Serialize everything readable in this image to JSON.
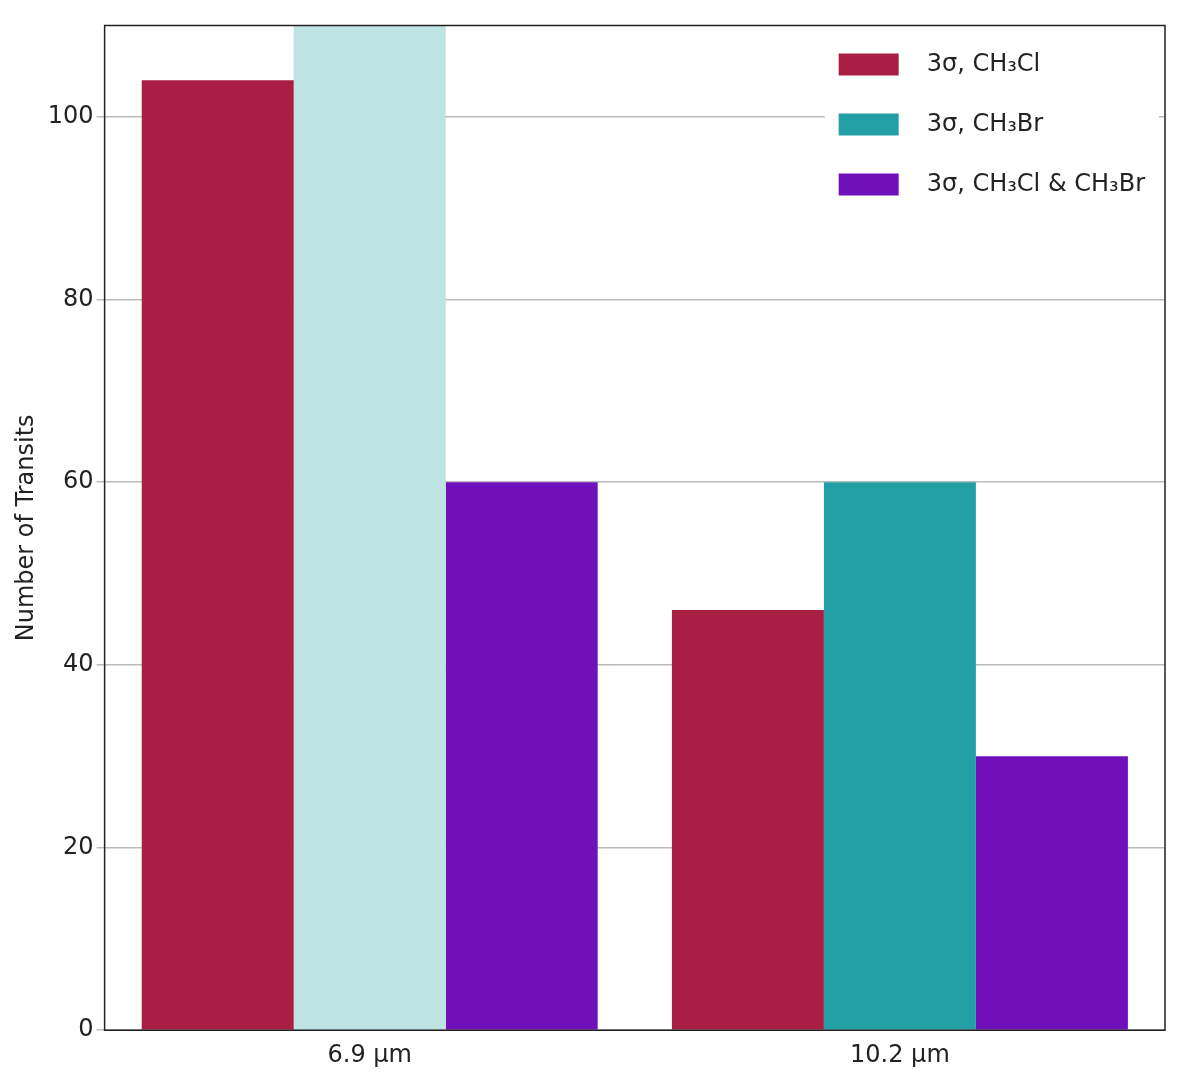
{
  "chart_data": {
    "type": "bar",
    "ylabel": "Number of Transits",
    "categories": [
      "6.9 μm",
      "10.2 μm"
    ],
    "series": [
      {
        "name": "3σ, CH₃Cl",
        "color": "#a91e43",
        "values": [
          104,
          46
        ]
      },
      {
        "name": "3σ, CH₃Br",
        "color": "#23a0a5",
        "colors": [
          "#bde3e3",
          "#23a0a5"
        ],
        "values": [
          110,
          60
        ]
      },
      {
        "name": "3σ, CH₃Cl & CH₃Br",
        "color": "#7010bb",
        "values": [
          60,
          30
        ]
      }
    ],
    "ylim": [
      0,
      110
    ],
    "yticks": [
      0,
      20,
      40,
      60,
      80,
      100
    ],
    "grid": "y",
    "legend": "top right"
  }
}
